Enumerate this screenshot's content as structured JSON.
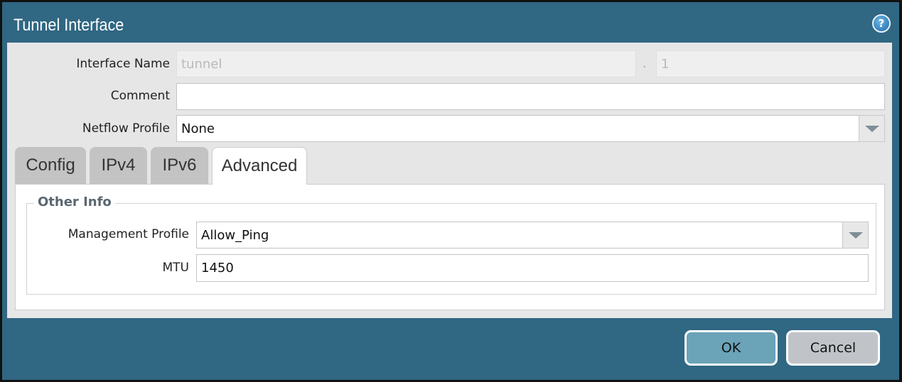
{
  "dialog": {
    "title": "Tunnel Interface",
    "help_icon": "help-icon"
  },
  "form": {
    "interface_name": {
      "label": "Interface Name",
      "value": "tunnel",
      "separator": ".",
      "subinterface": "1"
    },
    "comment": {
      "label": "Comment",
      "value": ""
    },
    "netflow_profile": {
      "label": "Netflow Profile",
      "value": "None"
    }
  },
  "tabs": [
    {
      "label": "Config",
      "active": false
    },
    {
      "label": "IPv4",
      "active": false
    },
    {
      "label": "IPv6",
      "active": false
    },
    {
      "label": "Advanced",
      "active": true
    }
  ],
  "advanced": {
    "section_title": "Other Info",
    "management_profile": {
      "label": "Management Profile",
      "value": "Allow_Ping"
    },
    "mtu": {
      "label": "MTU",
      "value": "1450"
    }
  },
  "footer": {
    "ok_label": "OK",
    "cancel_label": "Cancel"
  },
  "colors": {
    "titlebar": "#306783",
    "ok_button": "#6ba3b8",
    "cancel_button": "#c0c4c8"
  }
}
